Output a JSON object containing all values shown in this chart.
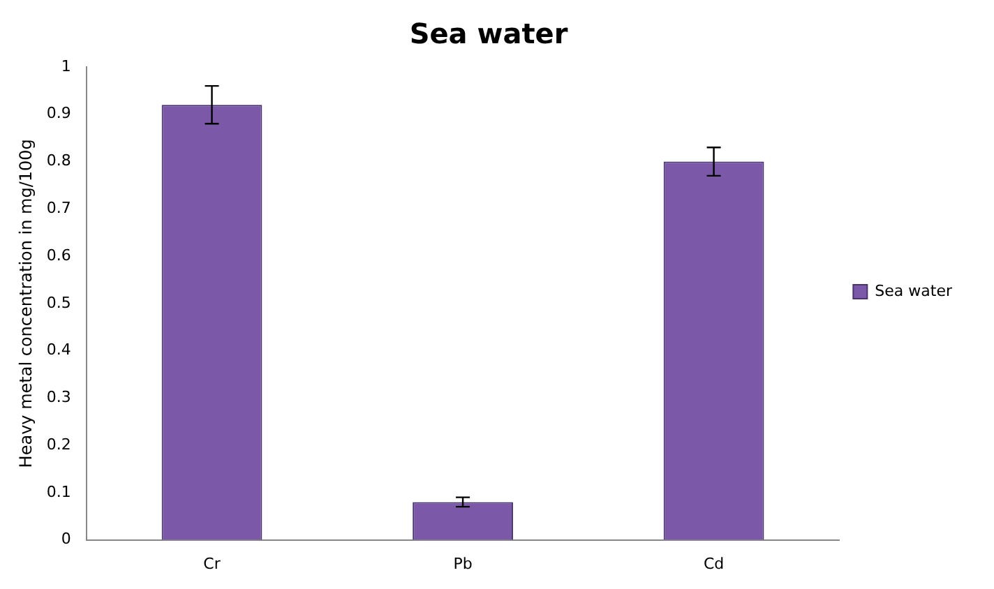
{
  "chart_data": {
    "type": "bar",
    "title": "Sea water",
    "ylabel": "Heavy metal concentration in mg/100g",
    "categories": [
      "Cr",
      "Pb",
      "Cd"
    ],
    "series": [
      {
        "name": "Sea water",
        "color": "#7b59a8",
        "values": [
          0.92,
          0.08,
          0.8
        ],
        "errors": [
          0.04,
          0.01,
          0.03
        ]
      }
    ],
    "ylim": [
      0,
      1
    ],
    "yticks": [
      0,
      0.1,
      0.2,
      0.3,
      0.4,
      0.5,
      0.6,
      0.7,
      0.8,
      0.9,
      1
    ],
    "grid": false,
    "legend": "right"
  }
}
